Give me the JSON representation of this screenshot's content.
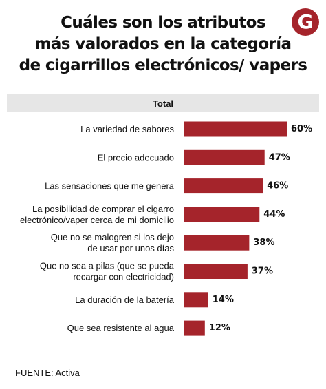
{
  "title_lines": [
    "Cuáles son los atributos",
    "más valorados en la categoría",
    "de cigarrillos electrónicos/ vapers"
  ],
  "logo_letter": "G",
  "colors": {
    "bar": "#a5242b",
    "logo": "#a5242b",
    "header_band": "#e6e6e6"
  },
  "chart_data": {
    "type": "bar",
    "orientation": "horizontal",
    "title": "",
    "subtitle": "Total",
    "categories": [
      [
        "La variedad de sabores"
      ],
      [
        "El precio adecuado"
      ],
      [
        "Las sensaciones que me genera"
      ],
      [
        "La posibilidad de comprar el cigarro",
        "electrónico/vaper cerca de mi domicilio"
      ],
      [
        "Que no se malogren si los dejo",
        "de usar por unos días"
      ],
      [
        "Que no sea a pilas (que se pueda",
        "recargar con electricidad)"
      ],
      [
        "La duración de la batería"
      ],
      [
        "Que sea resistente al agua"
      ]
    ],
    "values": [
      60,
      47,
      46,
      44,
      38,
      37,
      14,
      12
    ],
    "value_labels": [
      "60%",
      "47%",
      "46%",
      "44%",
      "38%",
      "37%",
      "14%",
      "12%"
    ],
    "unit": "%",
    "xlim": [
      0,
      60
    ],
    "grid": false,
    "legend": "none"
  },
  "source": "FUENTE: Activa"
}
